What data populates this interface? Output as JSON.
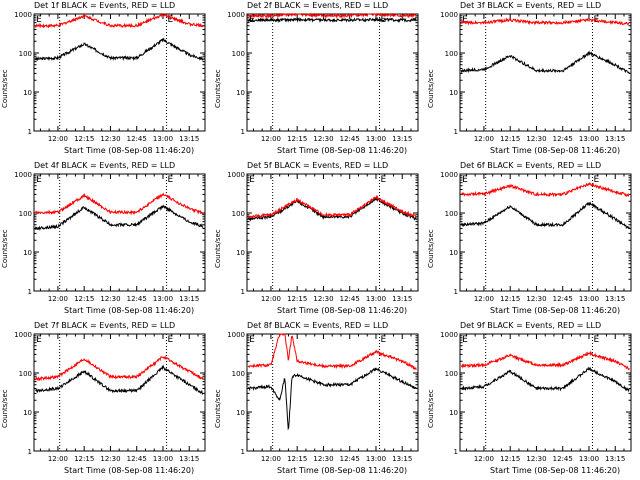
{
  "common": {
    "y_axis_label": "Counts/sec",
    "x_axis_label": "Start Time (08-Sep-08 11:46:20)",
    "ytick_labels": [
      "1",
      "10",
      "100",
      "1000"
    ],
    "xtick_labels": [
      "12:00",
      "12:15",
      "12:30",
      "12:45",
      "13:00",
      "13:15"
    ],
    "marker_label": "E",
    "colors": {
      "events": "#000000",
      "lld": "#ff0000",
      "dotted_lines": "#000000"
    }
  },
  "chart_data": [
    {
      "title": "Det 1f BLACK = Events, RED = LLD",
      "type": "line",
      "xlim": [
        "11:46:20",
        "13:24"
      ],
      "ylim": [
        1,
        1000
      ],
      "yscale": "log",
      "x": [
        "11:47",
        "12:00",
        "12:15",
        "12:30",
        "12:45",
        "13:00",
        "13:15",
        "13:23"
      ],
      "series": [
        {
          "name": "Events",
          "color": "#000000",
          "values": [
            70,
            75,
            170,
            75,
            75,
            220,
            90,
            70
          ]
        },
        {
          "name": "LLD",
          "color": "#ff0000",
          "values": [
            500,
            500,
            900,
            500,
            500,
            950,
            550,
            500
          ]
        }
      ]
    },
    {
      "title": "Det 2f BLACK = Events, RED = LLD",
      "type": "line",
      "xlim": [
        "11:46:20",
        "13:24"
      ],
      "ylim": [
        1,
        1000
      ],
      "yscale": "log",
      "x": [
        "11:47",
        "12:00",
        "12:15",
        "12:30",
        "12:45",
        "13:00",
        "13:15",
        "13:23"
      ],
      "series": [
        {
          "name": "Events",
          "color": "#000000",
          "values": [
            700,
            700,
            720,
            700,
            700,
            720,
            700,
            700
          ]
        },
        {
          "name": "LLD",
          "color": "#ff0000",
          "values": [
            900,
            900,
            1000,
            900,
            900,
            1000,
            900,
            900
          ]
        }
      ]
    },
    {
      "title": "Det 3f BLACK = Events, RED = LLD",
      "type": "line",
      "xlim": [
        "11:46:20",
        "13:24"
      ],
      "ylim": [
        1,
        1000
      ],
      "yscale": "log",
      "x": [
        "11:47",
        "12:00",
        "12:15",
        "12:30",
        "12:45",
        "13:00",
        "13:15",
        "13:23"
      ],
      "series": [
        {
          "name": "Events",
          "color": "#000000",
          "values": [
            35,
            38,
            85,
            35,
            35,
            100,
            50,
            30
          ]
        },
        {
          "name": "LLD",
          "color": "#ff0000",
          "values": [
            600,
            600,
            700,
            600,
            600,
            700,
            600,
            550
          ]
        }
      ]
    },
    {
      "title": "Det 4f BLACK = Events, RED = LLD",
      "type": "line",
      "xlim": [
        "11:46:20",
        "13:24"
      ],
      "ylim": [
        1,
        1000
      ],
      "yscale": "log",
      "x": [
        "11:47",
        "12:00",
        "12:15",
        "12:30",
        "12:45",
        "13:00",
        "13:15",
        "13:23"
      ],
      "series": [
        {
          "name": "Events",
          "color": "#000000",
          "values": [
            40,
            45,
            140,
            50,
            50,
            150,
            60,
            45
          ]
        },
        {
          "name": "LLD",
          "color": "#ff0000",
          "values": [
            100,
            105,
            280,
            105,
            105,
            300,
            130,
            100
          ]
        }
      ]
    },
    {
      "title": "Det 5f BLACK = Events, RED = LLD",
      "type": "line",
      "xlim": [
        "11:46:20",
        "13:24"
      ],
      "ylim": [
        1,
        1000
      ],
      "yscale": "log",
      "x": [
        "11:47",
        "12:00",
        "12:15",
        "12:30",
        "12:45",
        "13:00",
        "13:15",
        "13:23"
      ],
      "series": [
        {
          "name": "Events",
          "color": "#000000",
          "values": [
            70,
            80,
            200,
            80,
            80,
            230,
            100,
            70
          ]
        },
        {
          "name": "LLD",
          "color": "#ff0000",
          "values": [
            80,
            90,
            220,
            90,
            90,
            250,
            110,
            80
          ]
        }
      ]
    },
    {
      "title": "Det 6f BLACK = Events, RED = LLD",
      "type": "line",
      "xlim": [
        "11:46:20",
        "13:24"
      ],
      "ylim": [
        1,
        1000
      ],
      "yscale": "log",
      "x": [
        "11:47",
        "12:00",
        "12:15",
        "12:30",
        "12:45",
        "13:00",
        "13:15",
        "13:23"
      ],
      "series": [
        {
          "name": "Events",
          "color": "#000000",
          "values": [
            50,
            55,
            150,
            50,
            50,
            180,
            70,
            40
          ]
        },
        {
          "name": "LLD",
          "color": "#ff0000",
          "values": [
            300,
            310,
            500,
            300,
            300,
            550,
            350,
            280
          ]
        }
      ]
    },
    {
      "title": "Det 7f BLACK = Events, RED = LLD",
      "type": "line",
      "xlim": [
        "11:46:20",
        "13:24"
      ],
      "ylim": [
        1,
        1000
      ],
      "yscale": "log",
      "x": [
        "11:47",
        "12:00",
        "12:15",
        "12:30",
        "12:45",
        "13:00",
        "13:15",
        "13:23"
      ],
      "series": [
        {
          "name": "Events",
          "color": "#000000",
          "values": [
            35,
            40,
            110,
            35,
            35,
            140,
            50,
            30
          ]
        },
        {
          "name": "LLD",
          "color": "#ff0000",
          "values": [
            70,
            80,
            230,
            80,
            80,
            260,
            110,
            70
          ]
        }
      ]
    },
    {
      "title": "Det 8f BLACK = Events, RED = LLD",
      "type": "line",
      "xlim": [
        "11:46:20",
        "13:24"
      ],
      "ylim": [
        1,
        1000
      ],
      "yscale": "log",
      "x": [
        "11:47",
        "12:00",
        "12:05",
        "12:08",
        "12:10",
        "12:12",
        "12:15",
        "12:30",
        "12:45",
        "13:00",
        "13:15",
        "13:23"
      ],
      "series": [
        {
          "name": "Events",
          "color": "#000000",
          "values": [
            40,
            45,
            20,
            80,
            3,
            80,
            90,
            50,
            50,
            130,
            60,
            40
          ]
        },
        {
          "name": "LLD",
          "color": "#ff0000",
          "values": [
            150,
            160,
            1000,
            1000,
            200,
            1000,
            200,
            150,
            150,
            350,
            200,
            130
          ]
        }
      ]
    },
    {
      "title": "Det 9f BLACK = Events, RED = LLD",
      "type": "line",
      "xlim": [
        "11:46:20",
        "13:24"
      ],
      "ylim": [
        1,
        1000
      ],
      "yscale": "log",
      "x": [
        "11:47",
        "12:00",
        "12:15",
        "12:30",
        "12:45",
        "13:00",
        "13:15",
        "13:23"
      ],
      "series": [
        {
          "name": "Events",
          "color": "#000000",
          "values": [
            40,
            45,
            110,
            40,
            40,
            130,
            60,
            35
          ]
        },
        {
          "name": "LLD",
          "color": "#ff0000",
          "values": [
            150,
            160,
            280,
            160,
            160,
            320,
            200,
            130
          ]
        }
      ]
    }
  ]
}
